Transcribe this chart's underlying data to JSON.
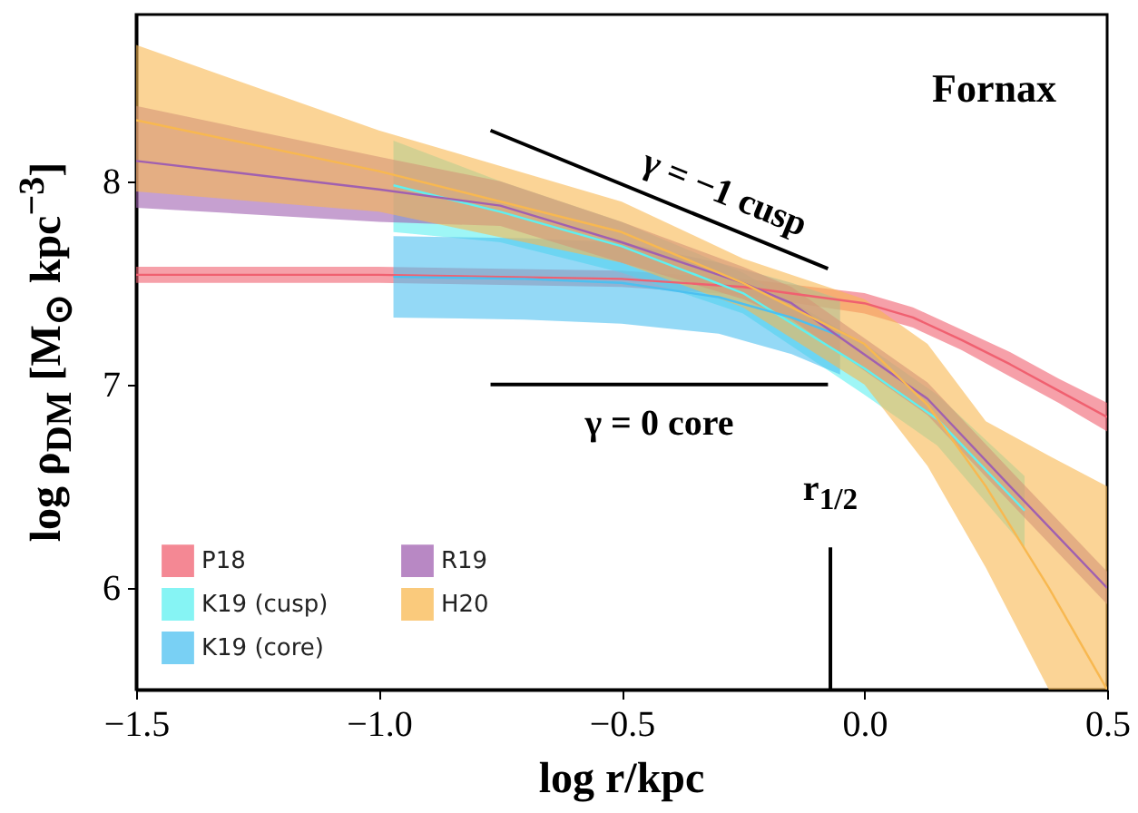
{
  "chart_data": {
    "type": "line",
    "xlabel": "log r/kpc",
    "ylabel": "log ρ$_{DM}$ [M$_{⊙}$ kpc$^{−3}$]",
    "xlim": [
      -1.5,
      0.5
    ],
    "ylim": [
      5.5,
      8.82
    ],
    "xticks": [
      {
        "value": -1.5,
        "label": "−1.5"
      },
      {
        "value": -1.0,
        "label": "−1.0"
      },
      {
        "value": -0.5,
        "label": "−0.5"
      },
      {
        "value": 0.0,
        "label": "0.0"
      },
      {
        "value": 0.5,
        "label": "0.5"
      }
    ],
    "yticks": [
      6,
      7,
      8
    ],
    "legend": "bottom left",
    "annotations": [
      "Fornax",
      "γ = −1 cusp",
      "γ = 0 core",
      "r$_{1/2}$"
    ],
    "series": [
      {
        "name": "P18",
        "color": "#f06070",
        "x": [
          -1.5,
          -1.0,
          -0.5,
          -0.25,
          0,
          0.1,
          0.2,
          0.3,
          0.4,
          0.5
        ],
        "values": [
          7.54,
          7.54,
          7.52,
          7.48,
          7.4,
          7.33,
          7.22,
          7.1,
          6.97,
          6.84
        ],
        "lower": [
          7.5,
          7.5,
          7.48,
          7.44,
          7.35,
          7.28,
          7.17,
          7.04,
          6.91,
          6.77
        ],
        "upper": [
          7.58,
          7.58,
          7.56,
          7.52,
          7.45,
          7.38,
          7.27,
          7.16,
          7.03,
          6.91
        ]
      },
      {
        "name": "K19 (cusp)",
        "color": "#5ef0f0",
        "x": [
          -0.97,
          -0.75,
          -0.5,
          -0.25,
          0,
          0.15,
          0.33
        ],
        "values": [
          7.98,
          7.85,
          7.68,
          7.45,
          7.08,
          6.83,
          6.38
        ],
        "lower": [
          7.75,
          7.7,
          7.55,
          7.35,
          6.95,
          6.7,
          6.2
        ],
        "upper": [
          8.2,
          8.0,
          7.8,
          7.55,
          7.2,
          6.95,
          6.55
        ]
      },
      {
        "name": "K19 (core)",
        "color": "#4cc0f0",
        "x": [
          -0.97,
          -0.7,
          -0.5,
          -0.3,
          -0.15,
          -0.05
        ],
        "values": [
          7.53,
          7.52,
          7.5,
          7.43,
          7.33,
          7.24
        ],
        "lower": [
          7.33,
          7.32,
          7.3,
          7.25,
          7.15,
          7.05
        ],
        "upper": [
          7.73,
          7.72,
          7.7,
          7.6,
          7.5,
          7.42
        ]
      },
      {
        "name": "R19",
        "color": "#a060b0",
        "x": [
          -1.5,
          -1.0,
          -0.75,
          -0.5,
          -0.25,
          -0.15,
          0.13,
          0.3,
          0.5
        ],
        "values": [
          8.1,
          7.96,
          7.88,
          7.7,
          7.5,
          7.4,
          6.93,
          6.5,
          6.0
        ],
        "lower": [
          7.87,
          7.8,
          7.78,
          7.6,
          7.42,
          7.32,
          6.85,
          6.42,
          5.92
        ],
        "upper": [
          8.37,
          8.12,
          8.0,
          7.8,
          7.58,
          7.48,
          7.01,
          6.58,
          6.08
        ]
      },
      {
        "name": "H20",
        "color": "#f8b850",
        "x": [
          -1.5,
          -1.0,
          -0.5,
          -0.25,
          0,
          0.13,
          0.25,
          0.38,
          0.5
        ],
        "values": [
          8.3,
          8.05,
          7.75,
          7.5,
          7.2,
          6.9,
          6.5,
          6.0,
          5.5
        ],
        "lower": [
          7.95,
          7.85,
          7.6,
          7.38,
          7.0,
          6.6,
          6.1,
          5.5,
          5.5
        ],
        "upper": [
          8.67,
          8.25,
          7.9,
          7.62,
          7.42,
          7.2,
          6.82,
          6.65,
          6.5
        ]
      },
      {
        "type": "line",
        "color": "#000000",
        "x": [
          -0.77,
          -0.075
        ],
        "values": [
          8.25,
          7.57
        ]
      },
      {
        "type": "line",
        "color": "#000000",
        "x": [
          -0.77,
          -0.075
        ],
        "values": [
          7.0,
          7.0
        ]
      },
      {
        "type": "line",
        "color": "#000000",
        "x": [
          -0.07,
          -0.07
        ],
        "values": [
          5.5,
          6.2
        ]
      }
    ]
  }
}
